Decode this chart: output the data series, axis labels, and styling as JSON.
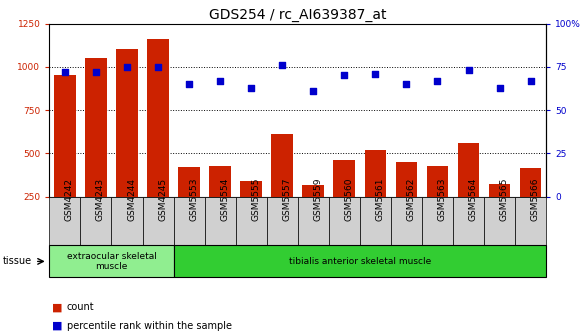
{
  "title": "GDS254 / rc_AI639387_at",
  "categories": [
    "GSM4242",
    "GSM4243",
    "GSM4244",
    "GSM4245",
    "GSM5553",
    "GSM5554",
    "GSM5555",
    "GSM5557",
    "GSM5559",
    "GSM5560",
    "GSM5561",
    "GSM5562",
    "GSM5563",
    "GSM5564",
    "GSM5565",
    "GSM5566"
  ],
  "counts": [
    950,
    1050,
    1100,
    1160,
    420,
    425,
    340,
    610,
    315,
    460,
    520,
    450,
    425,
    560,
    320,
    415
  ],
  "percentiles": [
    72,
    72,
    75,
    75,
    65,
    67,
    63,
    76,
    61,
    70,
    71,
    65,
    67,
    73,
    63,
    67
  ],
  "bar_color": "#cc2200",
  "dot_color": "#0000cc",
  "left_ylim": [
    250,
    1250
  ],
  "left_yticks": [
    250,
    500,
    750,
    1000,
    1250
  ],
  "right_ylim": [
    0,
    100
  ],
  "right_yticks": [
    0,
    25,
    50,
    75,
    100
  ],
  "right_yticklabels": [
    "0",
    "25",
    "50",
    "75",
    "100%"
  ],
  "tissue_groups": [
    {
      "label": "extraocular skeletal\nmuscle",
      "start": 0,
      "end": 4,
      "color": "#90ee90"
    },
    {
      "label": "tibialis anterior skeletal muscle",
      "start": 4,
      "end": 16,
      "color": "#32cd32"
    }
  ],
  "legend_items": [
    {
      "label": "count",
      "color": "#cc2200"
    },
    {
      "label": "percentile rank within the sample",
      "color": "#0000cc"
    }
  ],
  "tissue_label": "tissue",
  "bg_color": "#d8d8d8",
  "plot_bg": "#ffffff",
  "tick_bg": "#d0d0d0",
  "title_fontsize": 10,
  "tick_fontsize": 6.5,
  "bar_width": 0.7,
  "n_categories": 16
}
